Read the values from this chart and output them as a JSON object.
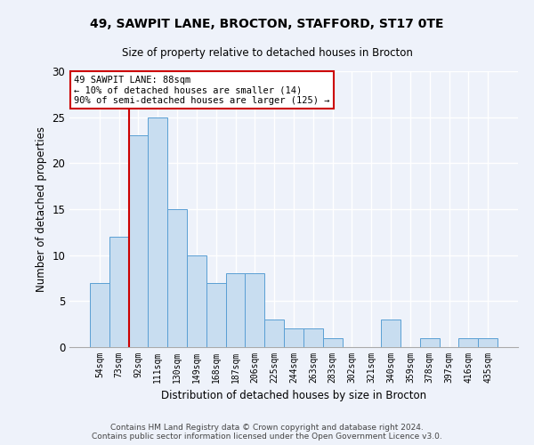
{
  "title_line1": "49, SAWPIT LANE, BROCTON, STAFFORD, ST17 0TE",
  "title_line2": "Size of property relative to detached houses in Brocton",
  "xlabel": "Distribution of detached houses by size in Brocton",
  "ylabel": "Number of detached properties",
  "categories": [
    "54sqm",
    "73sqm",
    "92sqm",
    "111sqm",
    "130sqm",
    "149sqm",
    "168sqm",
    "187sqm",
    "206sqm",
    "225sqm",
    "244sqm",
    "263sqm",
    "283sqm",
    "302sqm",
    "321sqm",
    "340sqm",
    "359sqm",
    "378sqm",
    "397sqm",
    "416sqm",
    "435sqm"
  ],
  "values": [
    7,
    12,
    23,
    25,
    15,
    10,
    7,
    8,
    8,
    3,
    2,
    2,
    1,
    0,
    0,
    3,
    0,
    1,
    0,
    1,
    1
  ],
  "bar_color": "#c8ddf0",
  "bar_edge_color": "#5a9fd4",
  "annotation_line1": "49 SAWPIT LANE: 88sqm",
  "annotation_line2": "← 10% of detached houses are smaller (14)",
  "annotation_line3": "90% of semi-detached houses are larger (125) →",
  "vline_color": "#cc0000",
  "annotation_box_edge_color": "#cc0000",
  "ylim": [
    0,
    30
  ],
  "yticks": [
    0,
    5,
    10,
    15,
    20,
    25,
    30
  ],
  "footer_line1": "Contains HM Land Registry data © Crown copyright and database right 2024.",
  "footer_line2": "Contains public sector information licensed under the Open Government Licence v3.0.",
  "background_color": "#eef2fa",
  "grid_color": "#ffffff"
}
